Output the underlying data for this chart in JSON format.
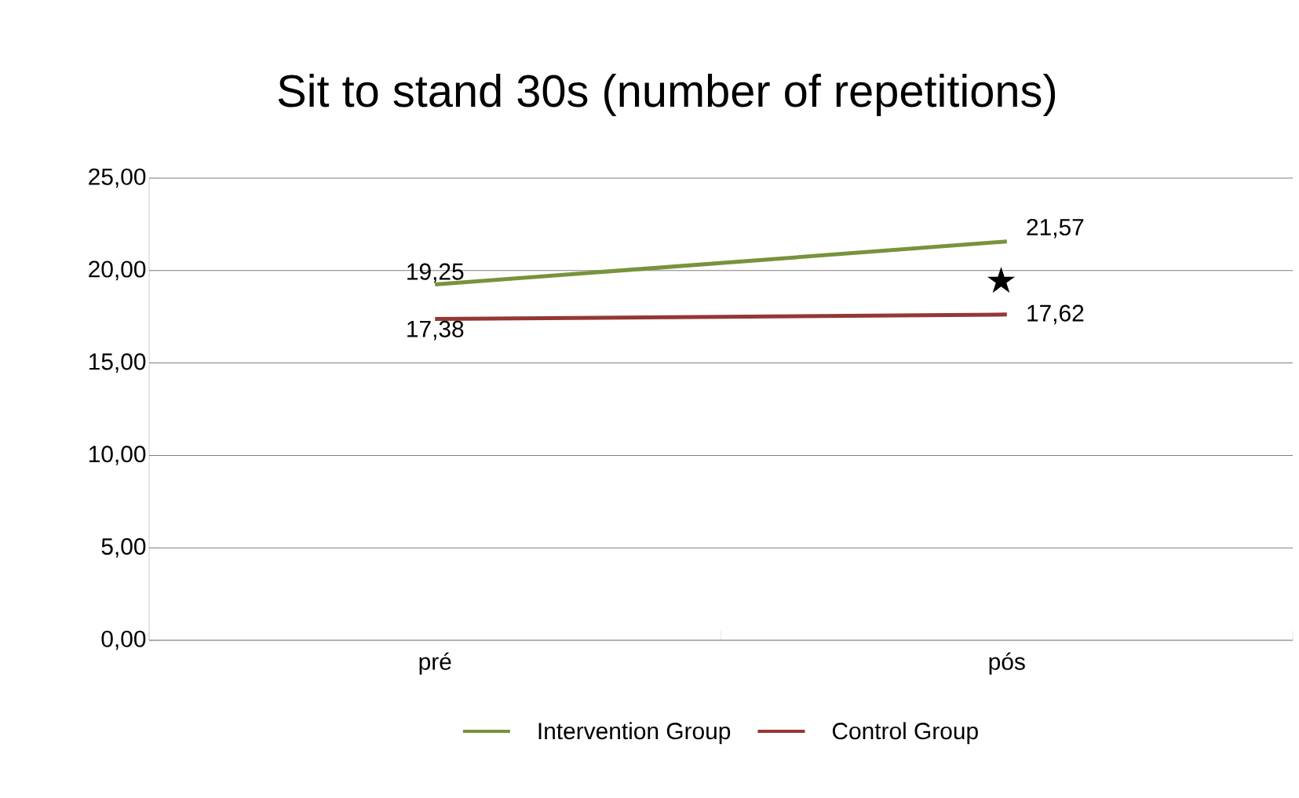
{
  "chart_data": {
    "type": "line",
    "title": "Sit to stand 30s (number of repetitions)",
    "categories": [
      "pré",
      "pós"
    ],
    "series": [
      {
        "name": "Intervention Group",
        "color": "#77933c",
        "values": [
          19.25,
          21.57
        ],
        "value_labels": [
          "19,25",
          "21,57"
        ]
      },
      {
        "name": "Control Group",
        "color": "#953735",
        "values": [
          17.38,
          17.62
        ],
        "value_labels": [
          "17,38",
          "17,62"
        ]
      }
    ],
    "ylim": [
      0,
      25
    ],
    "yticks": [
      {
        "value": 0,
        "label": "0,00"
      },
      {
        "value": 5,
        "label": "5,00"
      },
      {
        "value": 10,
        "label": "10,00"
      },
      {
        "value": 15,
        "label": "15,00"
      },
      {
        "value": 20,
        "label": "20,00"
      },
      {
        "value": 25,
        "label": "25,00"
      }
    ],
    "grid": "y",
    "legend": "bottom",
    "marker": "none",
    "line_style": "solid",
    "annotations": [
      "★"
    ]
  }
}
